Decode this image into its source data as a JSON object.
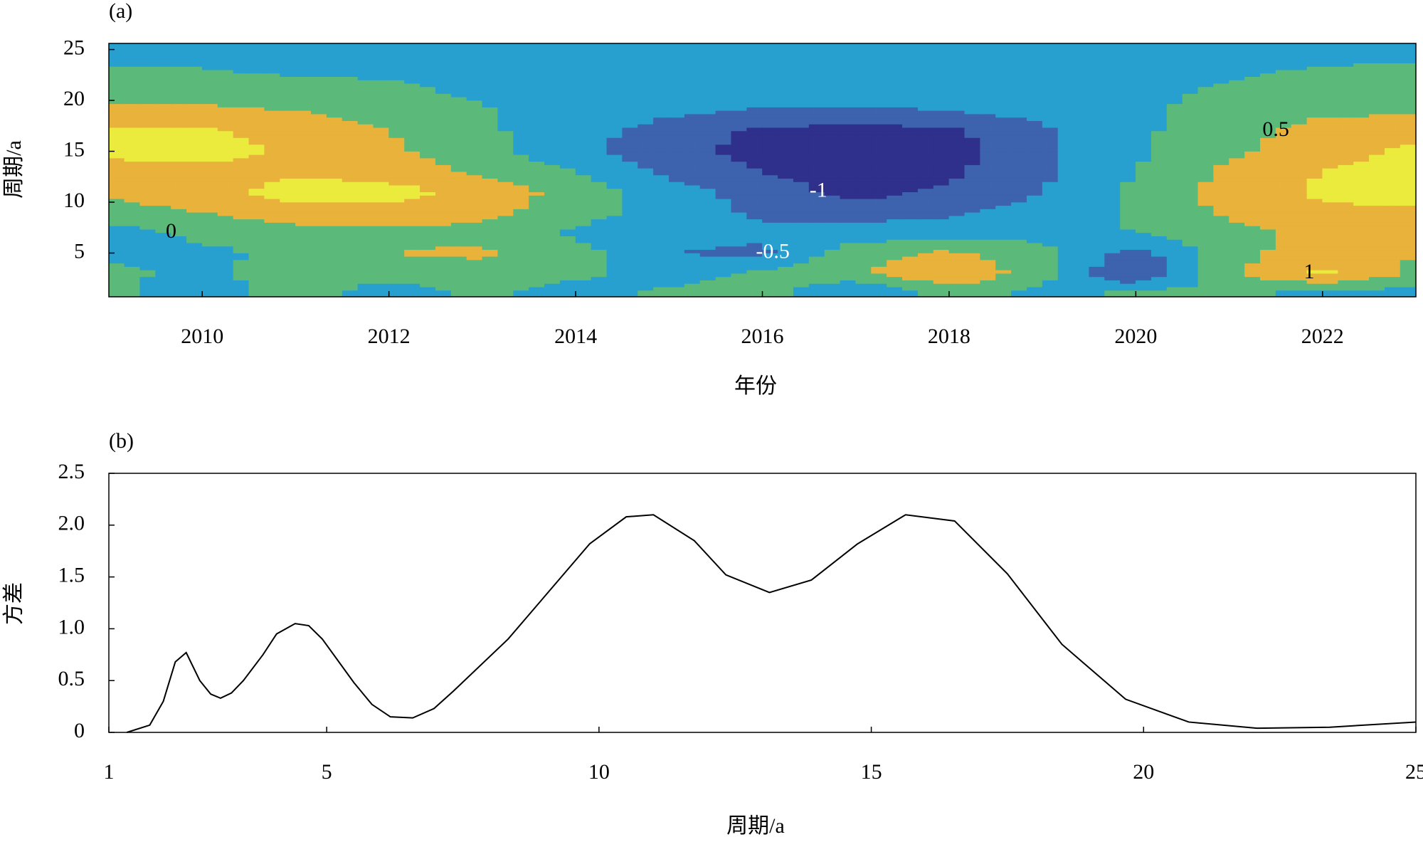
{
  "chart_data": [
    {
      "type": "contour",
      "panel_label": "(a)",
      "xlabel": "年份",
      "ylabel": "周期/a",
      "xlim": [
        2009,
        2023
      ],
      "ylim": [
        0.7,
        25.6
      ],
      "xticks": [
        2010,
        2012,
        2014,
        2016,
        2018,
        2020,
        2022
      ],
      "yticks": [
        5,
        10,
        15,
        20,
        25
      ],
      "x": [
        2009,
        2010,
        2011,
        2012,
        2013,
        2014,
        2015,
        2016,
        2017,
        2018,
        2019,
        2020,
        2021,
        2022,
        2023
      ],
      "y": [
        1,
        3,
        5,
        7,
        9,
        11,
        13,
        15,
        17,
        19,
        21,
        23,
        25
      ],
      "levels": [
        -1,
        -0.5,
        0,
        0.5,
        1
      ],
      "colors": [
        "#2f2f8c",
        "#3d62ae",
        "#27a0d0",
        "#5bba7a",
        "#e8b23b",
        "#ebeb3e"
      ],
      "z": [
        [
          0.1,
          -0.3,
          0.3,
          -0.3,
          0.1,
          -0.2,
          0.1,
          0.2,
          -0.6,
          0.2,
          -0.2,
          0.2,
          0.1,
          -0.2,
          -0.2
        ],
        [
          0.1,
          -0.1,
          0.2,
          0.2,
          0.3,
          0.1,
          -0.2,
          0.1,
          0.4,
          1.0,
          0.2,
          -1.1,
          0.4,
          1.1,
          0.4
        ],
        [
          -0.1,
          -0.1,
          0.1,
          0.5,
          0.6,
          0.2,
          -0.5,
          -0.6,
          0.3,
          0.6,
          0.1,
          -0.7,
          0.3,
          0.8,
          0.5
        ],
        [
          -0.2,
          0.1,
          0.3,
          0.4,
          0.3,
          -0.1,
          -0.3,
          -0.4,
          -0.3,
          -0.2,
          -0.1,
          0.0,
          0.3,
          0.7,
          0.6
        ],
        [
          0.3,
          0.5,
          0.8,
          0.8,
          0.7,
          0.2,
          -0.2,
          -0.6,
          -0.7,
          -0.6,
          -0.3,
          0.1,
          0.6,
          0.9,
          0.9
        ],
        [
          0.6,
          0.8,
          1.2,
          1.2,
          0.8,
          0.3,
          -0.3,
          -0.7,
          -1.2,
          -0.9,
          -0.5,
          0.1,
          0.7,
          1.1,
          1.2
        ],
        [
          0.7,
          0.8,
          0.9,
          0.8,
          0.4,
          0.0,
          -0.6,
          -1.0,
          -1.3,
          -1.1,
          -0.6,
          0.0,
          0.6,
          1.0,
          1.2
        ],
        [
          1.2,
          1.2,
          0.9,
          0.6,
          0.2,
          -0.4,
          -0.8,
          -1.2,
          -1.3,
          -1.2,
          -0.6,
          -0.1,
          0.4,
          0.8,
          1.1
        ],
        [
          1.1,
          1.1,
          0.8,
          0.5,
          0.1,
          -0.3,
          -0.7,
          -1.1,
          -1.2,
          -1.1,
          -0.6,
          -0.1,
          0.3,
          0.7,
          0.9
        ],
        [
          0.6,
          0.6,
          0.5,
          0.3,
          0.05,
          -0.2,
          -0.4,
          -0.55,
          -0.6,
          -0.5,
          -0.3,
          -0.1,
          0.2,
          0.4,
          0.4
        ],
        [
          0.3,
          0.3,
          0.2,
          0.1,
          -0.1,
          -0.2,
          -0.2,
          -0.2,
          -0.2,
          -0.2,
          -0.2,
          -0.2,
          0.1,
          0.2,
          0.2
        ],
        [
          0.05,
          0.02,
          -0.1,
          -0.1,
          -0.2,
          -0.2,
          -0.2,
          -0.2,
          -0.2,
          -0.2,
          -0.2,
          -0.2,
          -0.1,
          0.05,
          0.1
        ],
        [
          -0.2,
          -0.2,
          -0.2,
          -0.2,
          -0.2,
          -0.2,
          -0.2,
          -0.2,
          -0.2,
          -0.2,
          -0.2,
          -0.2,
          -0.2,
          -0.2,
          -0.2
        ]
      ]
    },
    {
      "type": "line",
      "panel_label": "(b)",
      "xlabel": "周期/a",
      "ylabel": "方差",
      "xlim": [
        1,
        25
      ],
      "ylim": [
        0,
        2.5
      ],
      "xticks": [
        1,
        5,
        10,
        15,
        20,
        25
      ],
      "yticks": [
        0,
        0.5,
        {
          "value": 1,
          "label": "1.0"
        },
        1.5,
        {
          "value": 2,
          "label": "2.0"
        },
        2.5
      ],
      "color": "#000000",
      "x": [
        1.33,
        1.75,
        2.0,
        2.22,
        2.42,
        2.67,
        2.87,
        3.05,
        3.25,
        3.47,
        3.83,
        4.08,
        4.42,
        4.67,
        4.92,
        5.5,
        5.83,
        6.17,
        6.58,
        6.97,
        7.33,
        8.33,
        9.83,
        10.5,
        11.0,
        11.75,
        12.33,
        13.13,
        13.9,
        14.75,
        15.63,
        16.53,
        17.5,
        18.5,
        19.67,
        20.83,
        22.08,
        23.42,
        25.0
      ],
      "values": [
        0,
        0.07,
        0.3,
        0.68,
        0.77,
        0.5,
        0.37,
        0.33,
        0.38,
        0.5,
        0.75,
        0.95,
        1.05,
        1.03,
        0.9,
        0.48,
        0.27,
        0.15,
        0.14,
        0.23,
        0.4,
        0.9,
        1.82,
        2.08,
        2.1,
        1.85,
        1.52,
        1.35,
        1.47,
        1.82,
        2.1,
        2.04,
        1.53,
        0.85,
        0.32,
        0.1,
        0.04,
        0.05,
        0.1
      ]
    }
  ]
}
